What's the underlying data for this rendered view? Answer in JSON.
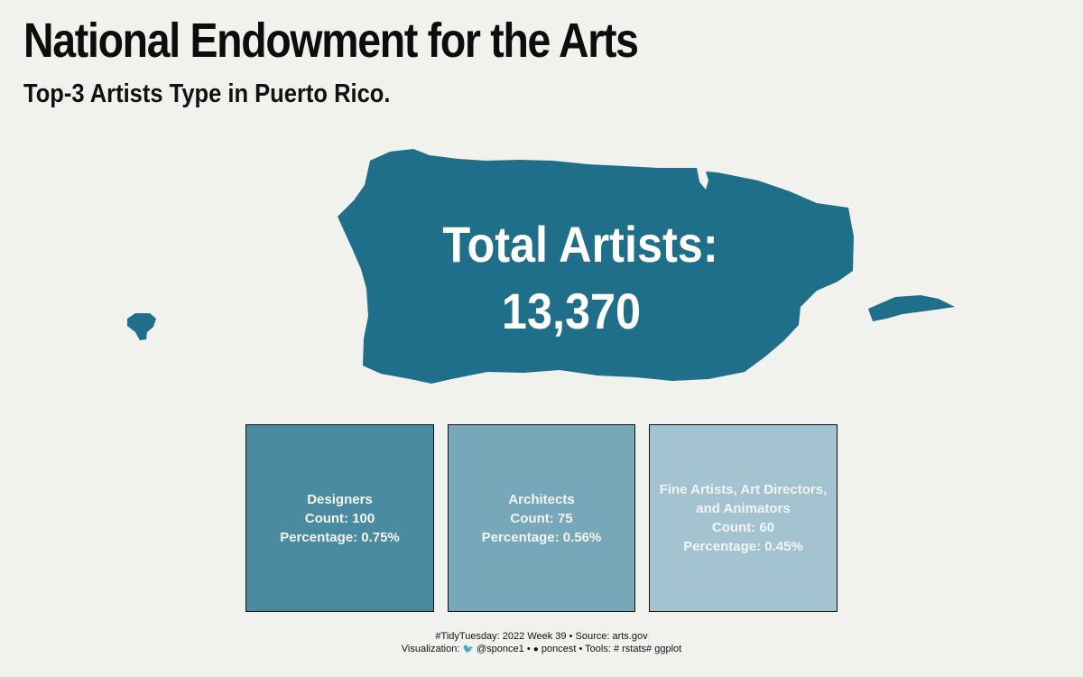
{
  "title": "National Endowment for the Arts",
  "subtitle": "Top-3 Artists Type in Puerto Rico.",
  "colors": {
    "background": "#f1f1ee",
    "map": "#1f6f8b",
    "tile_1": "#4a8ba2",
    "tile_2": "#77a8b9",
    "tile_3": "#a4c3d1"
  },
  "chart_data": {
    "type": "treemap",
    "total_label": "Total Artists:",
    "total_value": "13,370",
    "total": 13370,
    "categories": [
      "Designers",
      "Architects",
      "Fine Artists, Art Directors, and Animators"
    ],
    "values": [
      100,
      75,
      60
    ],
    "percentages": [
      0.75,
      0.56,
      0.45
    ],
    "tiles": [
      {
        "lines": [
          "Designers",
          "Count: 100",
          "Percentage: 0.75%"
        ]
      },
      {
        "lines": [
          "Architects",
          "Count: 75",
          "Percentage: 0.56%"
        ]
      },
      {
        "lines": [
          "Fine Artists, Art Directors,",
          "and Animators",
          "Count: 60",
          "Percentage: 0.45%"
        ]
      }
    ]
  },
  "caption": {
    "line1": "#TidyTuesday: 2022 Week 39 • Source: arts.gov",
    "line2_prefix": "Visualization:",
    "twitter_icon": "twitter-bird-icon",
    "twitter": "@sponce1",
    "sep1": "•",
    "github_icon": "github-icon",
    "github": "poncest",
    "sep2": "• Tools:",
    "tool1_icon": "hashtag-icon",
    "tool1": "rstats",
    "tool2_icon": "hashtag-icon",
    "tool2": "ggplot"
  }
}
